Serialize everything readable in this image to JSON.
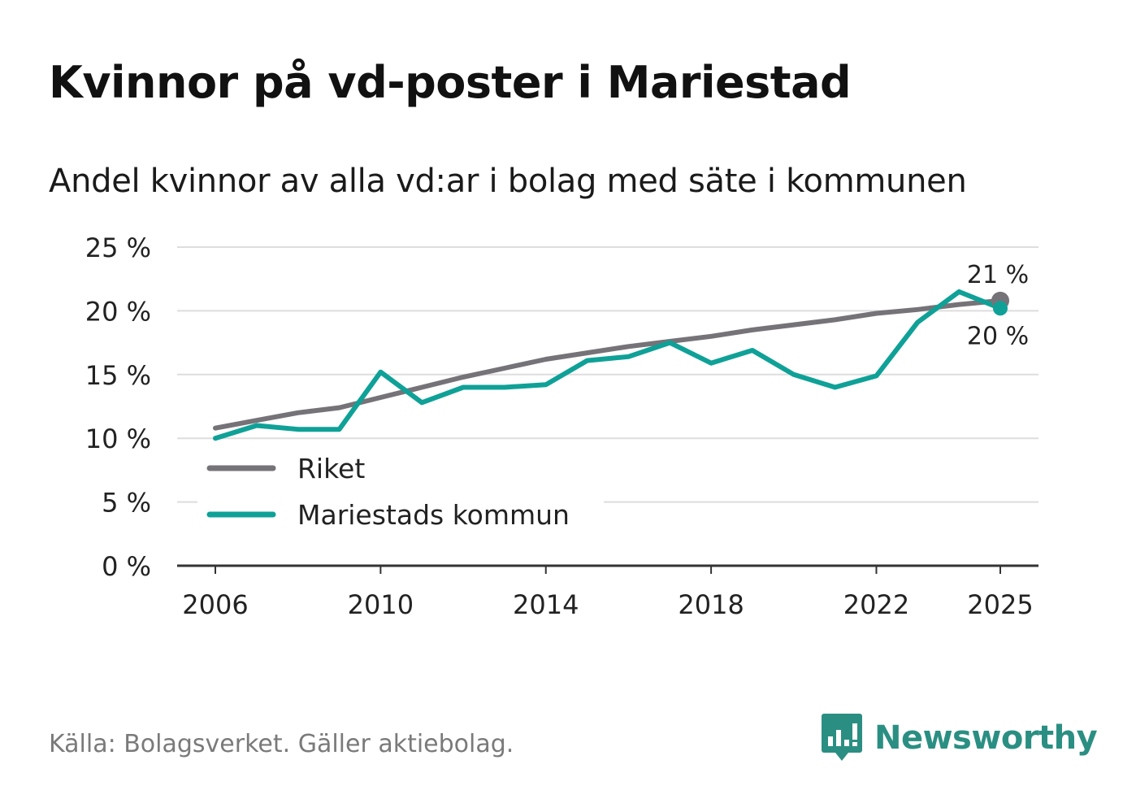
{
  "title": "Kvinnor på vd-poster i Mariestad",
  "subtitle": "Andel kvinnor av alla vd:ar i bolag med säte i kommunen",
  "source": "Källa: Bolagsverket. Gäller aktiebolag.",
  "brand": "Newsworthy",
  "colors": {
    "riket": "#767378",
    "kommun": "#0fa197",
    "grid": "#dddddd",
    "axis": "#333333",
    "brand": "#2a8f82"
  },
  "chart_data": {
    "type": "line",
    "x": [
      2006,
      2007,
      2008,
      2009,
      2010,
      2011,
      2012,
      2013,
      2014,
      2015,
      2016,
      2017,
      2018,
      2019,
      2020,
      2021,
      2022,
      2023,
      2024,
      2025
    ],
    "series": [
      {
        "name": "Riket",
        "key": "riket",
        "values": [
          10.8,
          11.4,
          12.0,
          12.4,
          13.2,
          14.0,
          14.8,
          15.5,
          16.2,
          16.7,
          17.2,
          17.6,
          18.0,
          18.5,
          18.9,
          19.3,
          19.8,
          20.1,
          20.5,
          20.8
        ],
        "end_label": "21 %"
      },
      {
        "name": "Mariestads kommun",
        "key": "kommun",
        "values": [
          10.0,
          11.0,
          10.7,
          10.7,
          15.2,
          12.8,
          14.0,
          14.0,
          14.2,
          16.1,
          16.4,
          17.5,
          15.9,
          16.9,
          15.0,
          14.0,
          14.9,
          19.1,
          21.5,
          20.2
        ],
        "end_label": "20 %"
      }
    ],
    "xticks": [
      2006,
      2010,
      2014,
      2018,
      2022,
      2025
    ],
    "yticks": [
      0,
      5,
      10,
      15,
      20,
      25
    ],
    "ytick_labels": [
      "0 %",
      "5 %",
      "10 %",
      "15 %",
      "20 %",
      "25 %"
    ],
    "ylim": [
      0,
      25
    ],
    "xlim": [
      2006,
      2025
    ],
    "legend": {
      "placement": "bottom-left",
      "entries": [
        "Riket",
        "Mariestads kommun"
      ]
    }
  }
}
